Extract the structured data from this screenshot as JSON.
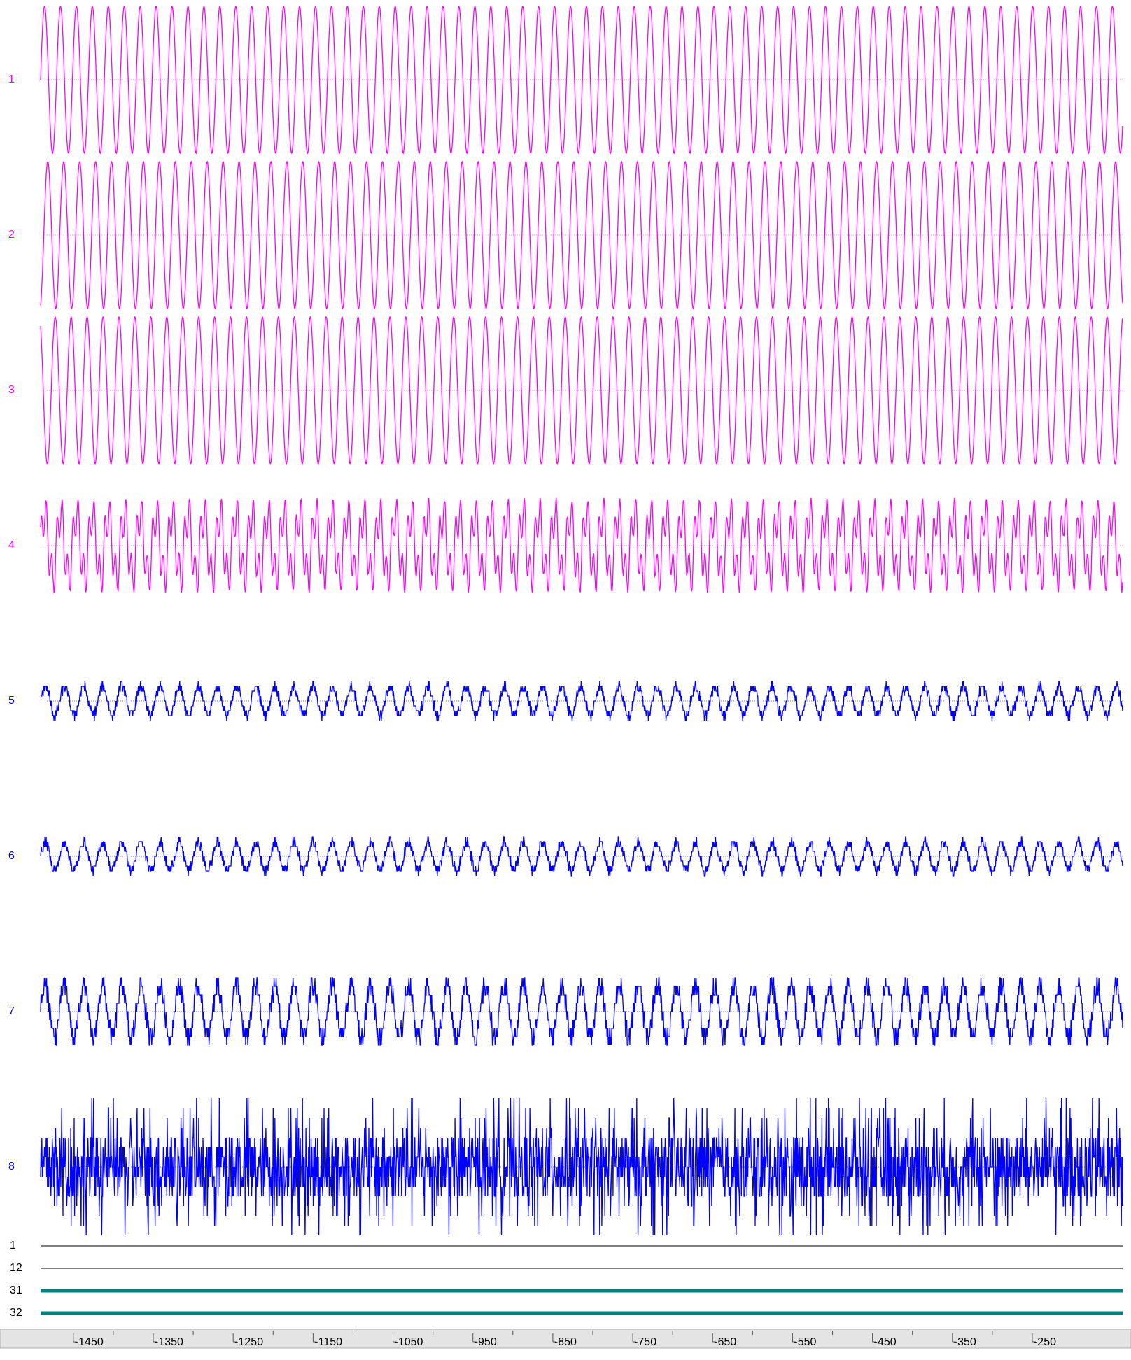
{
  "chart_data": {
    "type": "waveform",
    "analog_channels": [
      {
        "name": "1",
        "color": "#ff00ff"
      },
      {
        "name": "2",
        "color": "#ff00ff"
      },
      {
        "name": "3",
        "color": "#ff00ff"
      },
      {
        "name": "4",
        "color": "#ff00ff"
      },
      {
        "name": "5",
        "color": "#0000ff"
      },
      {
        "name": "6",
        "color": "#0000ff"
      },
      {
        "name": "7",
        "color": "#0000ff"
      },
      {
        "name": "8",
        "color": "#0000ff"
      }
    ],
    "digital_channels": [
      {
        "name": "1",
        "color": "#333333"
      },
      {
        "name": "12",
        "color": "#333333"
      },
      {
        "name": "31",
        "color": "#008080"
      },
      {
        "name": "32",
        "color": "#008080"
      }
    ],
    "xlim": [
      -1491,
      -137
    ],
    "xticks": [
      -1450,
      -1350,
      -1250,
      -1150,
      -1050,
      -950,
      -850,
      -750,
      -650,
      -550,
      -450,
      -350,
      -250
    ]
  }
}
